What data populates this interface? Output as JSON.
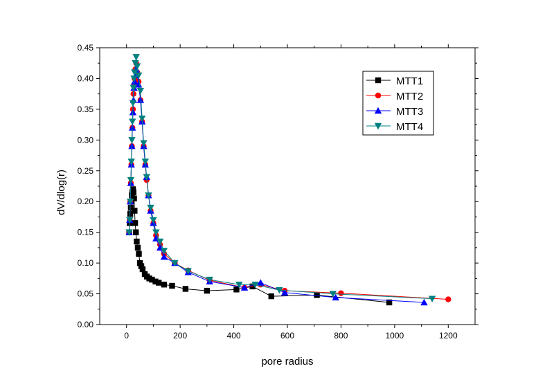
{
  "chart_data": {
    "type": "line",
    "title": "",
    "xlabel": "pore radius",
    "ylabel": "dV/dlog(r)",
    "xlim": [
      -100,
      1300
    ],
    "ylim": [
      0.0,
      0.45
    ],
    "xticks": [
      "0",
      "200",
      "400",
      "600",
      "800",
      "1000",
      "1200"
    ],
    "yticks": [
      "0.00",
      "0.05",
      "0.10",
      "0.15",
      "0.20",
      "0.25",
      "0.30",
      "0.35",
      "0.40",
      "0.45"
    ],
    "grid": false,
    "legend_position": "top-right",
    "series": [
      {
        "name": "MTT1",
        "color": "#000000",
        "marker": "square",
        "points": [
          [
            10,
            0.15
          ],
          [
            12,
            0.165
          ],
          [
            14,
            0.18
          ],
          [
            16,
            0.19
          ],
          [
            18,
            0.2
          ],
          [
            20,
            0.21
          ],
          [
            22,
            0.215
          ],
          [
            24,
            0.22
          ],
          [
            26,
            0.215
          ],
          [
            28,
            0.205
          ],
          [
            30,
            0.185
          ],
          [
            32,
            0.165
          ],
          [
            35,
            0.15
          ],
          [
            38,
            0.135
          ],
          [
            42,
            0.125
          ],
          [
            46,
            0.115
          ],
          [
            50,
            0.1
          ],
          [
            55,
            0.095
          ],
          [
            60,
            0.09
          ],
          [
            68,
            0.082
          ],
          [
            76,
            0.078
          ],
          [
            85,
            0.075
          ],
          [
            95,
            0.073
          ],
          [
            108,
            0.07
          ],
          [
            120,
            0.068
          ],
          [
            140,
            0.065
          ],
          [
            170,
            0.063
          ],
          [
            220,
            0.058
          ],
          [
            300,
            0.055
          ],
          [
            410,
            0.057
          ],
          [
            470,
            0.062
          ],
          [
            540,
            0.046
          ],
          [
            710,
            0.048
          ],
          [
            980,
            0.036
          ]
        ]
      },
      {
        "name": "MTT2",
        "color": "#ff0000",
        "marker": "circle",
        "points": [
          [
            10,
            0.15
          ],
          [
            12,
            0.17
          ],
          [
            14,
            0.2
          ],
          [
            16,
            0.23
          ],
          [
            18,
            0.26
          ],
          [
            20,
            0.29
          ],
          [
            22,
            0.32
          ],
          [
            24,
            0.35
          ],
          [
            26,
            0.375
          ],
          [
            28,
            0.39
          ],
          [
            30,
            0.4
          ],
          [
            33,
            0.415
          ],
          [
            36,
            0.425
          ],
          [
            40,
            0.41
          ],
          [
            45,
            0.395
          ],
          [
            52,
            0.365
          ],
          [
            58,
            0.33
          ],
          [
            64,
            0.29
          ],
          [
            70,
            0.26
          ],
          [
            75,
            0.235
          ],
          [
            82,
            0.21
          ],
          [
            90,
            0.185
          ],
          [
            100,
            0.165
          ],
          [
            110,
            0.145
          ],
          [
            125,
            0.13
          ],
          [
            140,
            0.115
          ],
          [
            180,
            0.1
          ],
          [
            230,
            0.088
          ],
          [
            310,
            0.072
          ],
          [
            440,
            0.06
          ],
          [
            500,
            0.065
          ],
          [
            590,
            0.055
          ],
          [
            800,
            0.051
          ],
          [
            1200,
            0.041
          ]
        ]
      },
      {
        "name": "MTT3",
        "color": "#0000ff",
        "marker": "triangle-up",
        "points": [
          [
            10,
            0.15
          ],
          [
            12,
            0.17
          ],
          [
            14,
            0.2
          ],
          [
            16,
            0.23
          ],
          [
            18,
            0.26
          ],
          [
            20,
            0.29
          ],
          [
            22,
            0.32
          ],
          [
            24,
            0.345
          ],
          [
            26,
            0.365
          ],
          [
            28,
            0.385
          ],
          [
            30,
            0.395
          ],
          [
            33,
            0.405
          ],
          [
            36,
            0.415
          ],
          [
            40,
            0.41
          ],
          [
            45,
            0.39
          ],
          [
            52,
            0.365
          ],
          [
            58,
            0.33
          ],
          [
            64,
            0.29
          ],
          [
            70,
            0.26
          ],
          [
            75,
            0.24
          ],
          [
            82,
            0.21
          ],
          [
            90,
            0.185
          ],
          [
            100,
            0.165
          ],
          [
            110,
            0.14
          ],
          [
            125,
            0.125
          ],
          [
            140,
            0.11
          ],
          [
            180,
            0.1
          ],
          [
            230,
            0.085
          ],
          [
            310,
            0.07
          ],
          [
            440,
            0.06
          ],
          [
            500,
            0.068
          ],
          [
            590,
            0.052
          ],
          [
            780,
            0.044
          ],
          [
            1110,
            0.036
          ]
        ]
      },
      {
        "name": "MTT4",
        "color": "#008080",
        "marker": "triangle-down",
        "points": [
          [
            10,
            0.15
          ],
          [
            12,
            0.17
          ],
          [
            14,
            0.2
          ],
          [
            16,
            0.235
          ],
          [
            18,
            0.265
          ],
          [
            20,
            0.3
          ],
          [
            22,
            0.33
          ],
          [
            24,
            0.36
          ],
          [
            26,
            0.385
          ],
          [
            28,
            0.4
          ],
          [
            30,
            0.41
          ],
          [
            33,
            0.425
          ],
          [
            36,
            0.435
          ],
          [
            40,
            0.42
          ],
          [
            45,
            0.405
          ],
          [
            52,
            0.38
          ],
          [
            58,
            0.335
          ],
          [
            64,
            0.295
          ],
          [
            70,
            0.265
          ],
          [
            75,
            0.24
          ],
          [
            82,
            0.21
          ],
          [
            90,
            0.19
          ],
          [
            100,
            0.17
          ],
          [
            110,
            0.15
          ],
          [
            125,
            0.135
          ],
          [
            140,
            0.12
          ],
          [
            180,
            0.1
          ],
          [
            230,
            0.087
          ],
          [
            310,
            0.073
          ],
          [
            420,
            0.065
          ],
          [
            480,
            0.065
          ],
          [
            570,
            0.056
          ],
          [
            770,
            0.05
          ],
          [
            1140,
            0.042
          ]
        ]
      }
    ]
  }
}
